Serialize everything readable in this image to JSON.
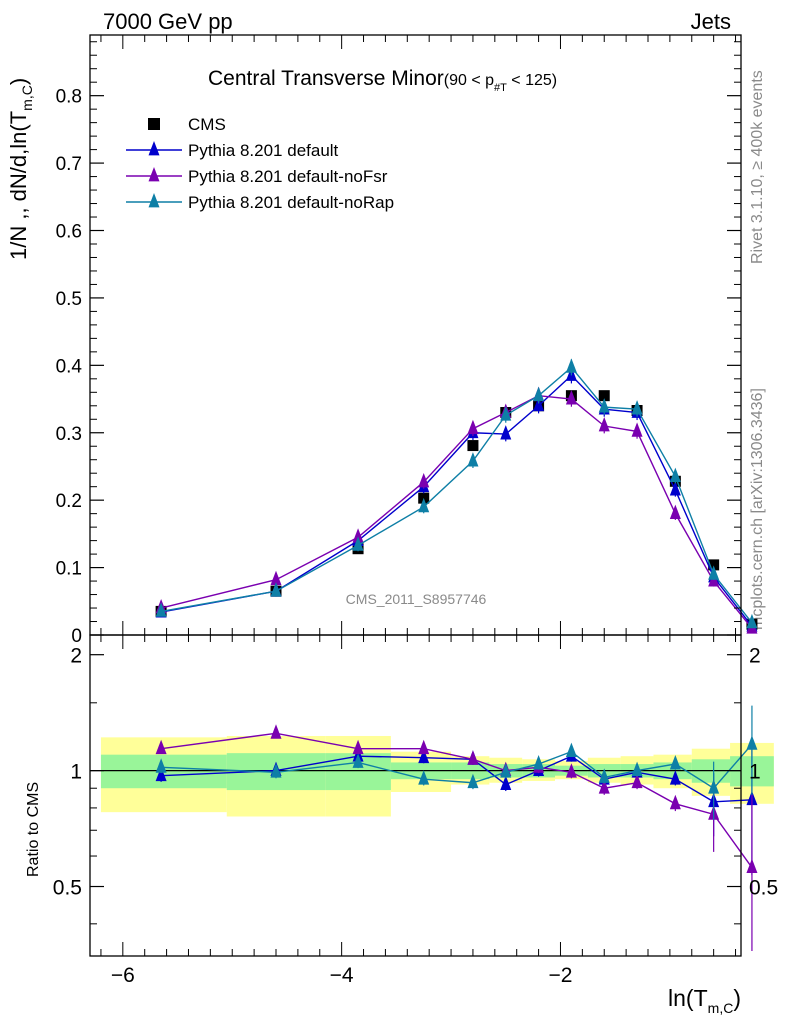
{
  "header": {
    "left": "7000 GeV pp",
    "right": "Jets"
  },
  "side_labels": {
    "rivet": "Rivet 3.1.10, ≥ 400k events",
    "mcplots": "mcplots.cern.ch [arXiv:1306.3436]"
  },
  "watermark": "CMS_2011_S8957746",
  "colors": {
    "cms": "#000000",
    "default": "#0000cc",
    "noFsr": "#7a00b0",
    "noRap": "#0e7fa6",
    "band_inner": "#99f599",
    "band_outer": "#ffff99"
  },
  "chart_data": [
    {
      "type": "scatter",
      "title_main": "Central Transverse Minor",
      "title_sub": "(90 < p",
      "title_sub_subscript": "#T",
      "title_sub_end": " < 125)",
      "ylabel": "1/N ,, dN/d,ln(T",
      "ylabel_subscript": "m,C",
      "ylabel_end": ")",
      "xlim": [
        -6.3,
        -0.35
      ],
      "ylim": [
        0,
        0.89
      ],
      "yticks": [
        0,
        0.1,
        0.2,
        0.3,
        0.4,
        0.5,
        0.6,
        0.7,
        0.8
      ],
      "ytick_labels": [
        "0",
        "0.1",
        "0.2",
        "0.3",
        "0.4",
        "0.5",
        "0.6",
        "0.7",
        "0.8"
      ],
      "legend_placement": "top-left",
      "x": [
        -5.65,
        -4.6,
        -3.85,
        -3.25,
        -2.8,
        -2.5,
        -2.2,
        -1.9,
        -1.6,
        -1.3,
        -0.95,
        -0.6,
        -0.25
      ],
      "series": [
        {
          "name": "CMS",
          "marker": "square",
          "values": [
            0.035,
            0.065,
            0.128,
            0.203,
            0.281,
            0.33,
            0.34,
            0.355,
            0.355,
            0.333,
            0.228,
            0.104,
            0.016
          ]
        },
        {
          "name": "Pythia 8.201 default",
          "marker": "triangle",
          "values": [
            0.034,
            0.065,
            0.14,
            0.22,
            0.3,
            0.298,
            0.34,
            0.385,
            0.335,
            0.33,
            0.215,
            0.086,
            0.013
          ]
        },
        {
          "name": "Pythia 8.201 default-noFsr",
          "marker": "triangle",
          "values": [
            0.04,
            0.082,
            0.145,
            0.227,
            0.306,
            0.33,
            0.355,
            0.35,
            0.31,
            0.302,
            0.18,
            0.08,
            0.01
          ]
        },
        {
          "name": "Pythia 8.201 default-noRap",
          "marker": "triangle",
          "values": [
            0.035,
            0.065,
            0.133,
            0.19,
            0.258,
            0.326,
            0.355,
            0.397,
            0.338,
            0.335,
            0.235,
            0.09,
            0.018
          ]
        }
      ]
    },
    {
      "type": "scatter",
      "ylabel": "Ratio to CMS",
      "xlabel": "ln(T",
      "xlabel_subscript": "m,C",
      "xlabel_end": ")",
      "xlim": [
        -6.3,
        -0.35
      ],
      "ylim": [
        0.33,
        2.25
      ],
      "yticks": [
        0.5,
        1,
        2
      ],
      "ytick_labels": [
        "0.5",
        "1",
        "2"
      ],
      "xticks": [
        -6,
        -4,
        -2
      ],
      "xtick_labels": [
        "−6",
        "−4",
        "−2"
      ],
      "x": [
        -5.65,
        -4.6,
        -3.85,
        -3.25,
        -2.8,
        -2.5,
        -2.2,
        -1.9,
        -1.6,
        -1.3,
        -0.95,
        -0.6,
        -0.25
      ],
      "bands": {
        "edges": [
          -6.2,
          -5.05,
          -4.15,
          -3.55,
          -3.0,
          -2.65,
          -2.35,
          -2.05,
          -1.75,
          -1.45,
          -1.15,
          -0.8,
          -0.45,
          -0.05
        ],
        "inner_low": [
          0.9,
          0.89,
          0.89,
          0.95,
          0.95,
          0.96,
          0.96,
          0.97,
          0.96,
          0.96,
          0.95,
          0.93,
          0.91
        ],
        "inner_high": [
          1.1,
          1.11,
          1.11,
          1.05,
          1.05,
          1.04,
          1.04,
          1.03,
          1.04,
          1.04,
          1.05,
          1.07,
          1.09
        ],
        "outer_low": [
          0.78,
          0.76,
          0.76,
          0.88,
          0.92,
          0.93,
          0.94,
          0.95,
          0.93,
          0.92,
          0.9,
          0.86,
          0.82
        ],
        "outer_high": [
          1.22,
          1.23,
          1.23,
          1.12,
          1.09,
          1.08,
          1.07,
          1.06,
          1.08,
          1.09,
          1.1,
          1.14,
          1.18
        ]
      },
      "series": [
        {
          "name": "Pythia 8.201 default",
          "values": [
            0.97,
            1.0,
            1.09,
            1.08,
            1.07,
            0.92,
            1.0,
            1.09,
            0.95,
            0.99,
            0.95,
            0.83,
            0.84
          ]
        },
        {
          "name": "Pythia 8.201 default-noFsr",
          "values": [
            1.14,
            1.25,
            1.14,
            1.14,
            1.07,
            1.0,
            1.02,
            0.99,
            0.9,
            0.93,
            0.82,
            0.77,
            0.56
          ]
        },
        {
          "name": "Pythia 8.201 default-noRap",
          "values": [
            1.02,
            0.99,
            1.05,
            0.95,
            0.93,
            0.99,
            1.04,
            1.12,
            0.96,
            1.0,
            1.04,
            0.9,
            1.17
          ]
        }
      ]
    }
  ]
}
